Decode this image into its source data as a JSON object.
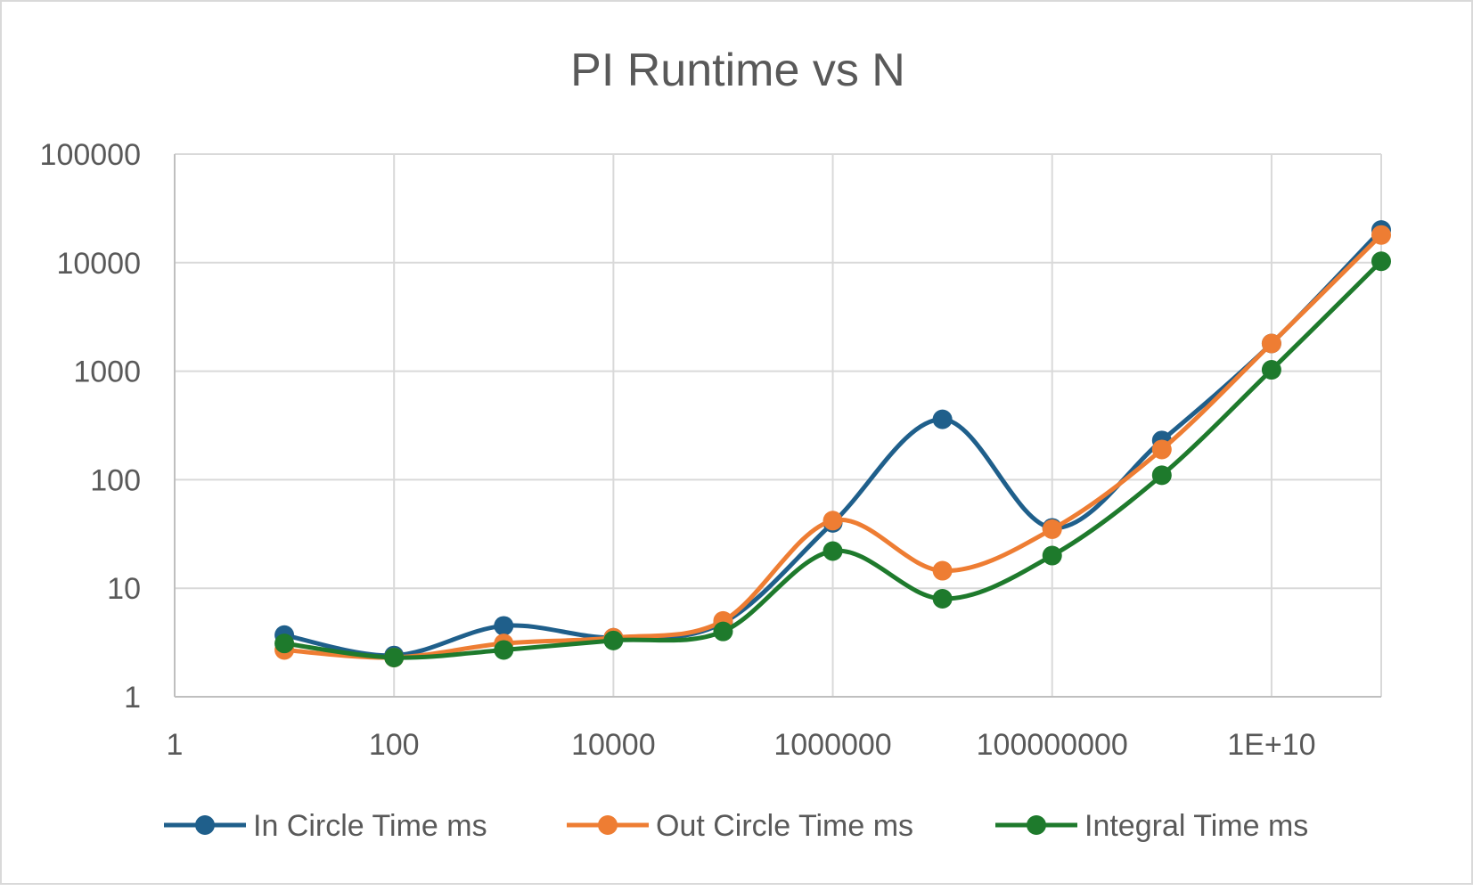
{
  "chart_data": {
    "type": "line",
    "title": "PI Runtime vs N",
    "xlabel": "",
    "ylabel": "",
    "x_scale": "log",
    "y_scale": "log",
    "xlim": [
      1,
      100000000000
    ],
    "ylim": [
      1,
      100000
    ],
    "x_ticks": [
      1,
      100,
      10000,
      1000000,
      100000000,
      10000000000
    ],
    "x_tick_labels": [
      "1",
      "100",
      "10000",
      "1000000",
      "100000000",
      "1E+10"
    ],
    "y_ticks": [
      1,
      10,
      100,
      1000,
      10000,
      100000
    ],
    "y_tick_labels": [
      "1",
      "10",
      "100",
      "1000",
      "10000",
      "100000"
    ],
    "grid": true,
    "legend_position": "bottom",
    "x": [
      10,
      100,
      1000,
      10000,
      100000,
      1000000,
      10000000,
      100000000,
      1000000000,
      10000000000,
      100000000000
    ],
    "series": [
      {
        "name": "In Circle Time ms",
        "color": "#1f5f8b",
        "values": [
          3.7,
          2.4,
          4.5,
          3.5,
          4.8,
          40,
          360,
          36,
          230,
          1800,
          20000
        ]
      },
      {
        "name": "Out Circle Time ms",
        "color": "#ee7d33",
        "values": [
          2.7,
          2.3,
          3.1,
          3.5,
          5.0,
          42,
          14.5,
          35,
          190,
          1800,
          18000
        ]
      },
      {
        "name": "Integral Time ms",
        "color": "#1e7a2c",
        "values": [
          3.1,
          2.3,
          2.7,
          3.3,
          4.0,
          22,
          8,
          20,
          110,
          1030,
          10300
        ]
      }
    ]
  }
}
